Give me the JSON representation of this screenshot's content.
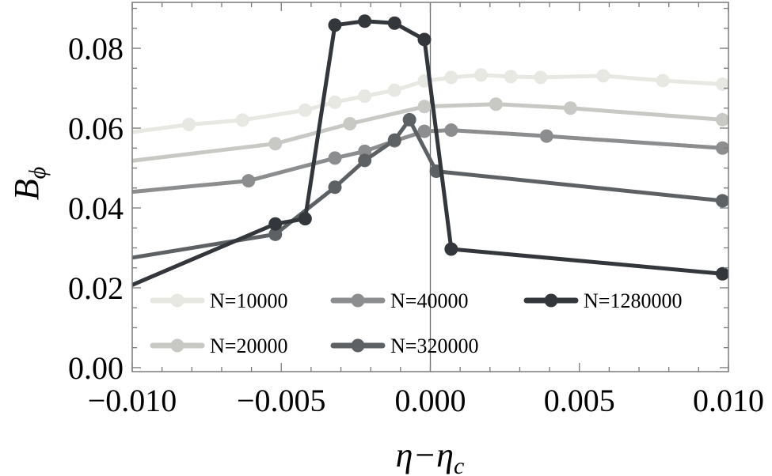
{
  "chart_data": {
    "type": "line",
    "xlabel": "η−η",
    "xlabel_sub": "c",
    "ylabel": "B",
    "ylabel_sub": "ϕ",
    "xlim": [
      -0.01,
      0.01
    ],
    "ylim": [
      -0.001,
      0.0915
    ],
    "x_ticks": [
      -0.01,
      -0.005,
      0.0,
      0.005,
      0.01
    ],
    "x_tick_labels": [
      "−0.010",
      "−0.005",
      "0.000",
      "0.005",
      "0.010"
    ],
    "y_ticks": [
      0.0,
      0.02,
      0.04,
      0.06,
      0.08
    ],
    "y_tick_labels": [
      "0.00",
      "0.02",
      "0.04",
      "0.06",
      "0.08"
    ],
    "vertical_line_x": 0.0,
    "legend_placement": "bottom",
    "series": [
      {
        "name": "N=10000",
        "color": "#e8e8e2",
        "points": [
          [
            -0.0105,
            0.0585
          ],
          [
            -0.0081,
            0.0609
          ],
          [
            -0.0063,
            0.062
          ],
          [
            -0.0042,
            0.0645
          ],
          [
            -0.0032,
            0.0665
          ],
          [
            -0.0022,
            0.068
          ],
          [
            -0.0012,
            0.0695
          ],
          [
            -0.0002,
            0.0718
          ],
          [
            0.0007,
            0.0727
          ],
          [
            0.0017,
            0.0733
          ],
          [
            0.0027,
            0.0729
          ],
          [
            0.0037,
            0.0727
          ],
          [
            0.0058,
            0.0731
          ],
          [
            0.0078,
            0.0719
          ],
          [
            0.0098,
            0.071
          ]
        ]
      },
      {
        "name": "N=20000",
        "color": "#c8c8c4",
        "points": [
          [
            -0.0106,
            0.0513
          ],
          [
            -0.0052,
            0.0561
          ],
          [
            -0.0027,
            0.0611
          ],
          [
            -0.0002,
            0.0654
          ],
          [
            0.0022,
            0.066
          ],
          [
            0.0047,
            0.065
          ],
          [
            0.0098,
            0.0621
          ]
        ]
      },
      {
        "name": "N=40000",
        "color": "#8c8d8e",
        "points": [
          [
            -0.0106,
            0.0436
          ],
          [
            -0.0061,
            0.0468
          ],
          [
            -0.0032,
            0.0525
          ],
          [
            -0.0022,
            0.0542
          ],
          [
            -0.0012,
            0.0568
          ],
          [
            -0.0002,
            0.0592
          ],
          [
            0.0007,
            0.0595
          ],
          [
            0.0039,
            0.058
          ],
          [
            0.0098,
            0.055
          ]
        ]
      },
      {
        "name": "N=320000",
        "color": "#5e6164",
        "points": [
          [
            -0.0106,
            0.0268
          ],
          [
            -0.0052,
            0.0334
          ],
          [
            -0.0032,
            0.0452
          ],
          [
            -0.0022,
            0.0519
          ],
          [
            -0.0012,
            0.057
          ],
          [
            -0.0007,
            0.0621
          ],
          [
            0.0002,
            0.0492
          ],
          [
            0.0098,
            0.0418
          ]
        ]
      },
      {
        "name": "N=1280000",
        "color": "#33373b",
        "points": [
          [
            -0.0106,
            0.0188
          ],
          [
            -0.0052,
            0.036
          ],
          [
            -0.0042,
            0.0373
          ],
          [
            -0.0032,
            0.0858
          ],
          [
            -0.0022,
            0.0868
          ],
          [
            -0.0012,
            0.0863
          ],
          [
            -0.0002,
            0.0822
          ],
          [
            0.0007,
            0.0297
          ],
          [
            0.0098,
            0.0235
          ]
        ]
      }
    ],
    "legend_items": [
      {
        "name": "N=10000",
        "color": "#e8e8e2",
        "col": 0,
        "row": 0
      },
      {
        "name": "N=40000",
        "color": "#8c8d8e",
        "col": 1,
        "row": 0
      },
      {
        "name": "N=1280000",
        "color": "#33373b",
        "col": 2,
        "row": 0
      },
      {
        "name": "N=20000",
        "color": "#c8c8c4",
        "col": 0,
        "row": 1
      },
      {
        "name": "N=320000",
        "color": "#5e6164",
        "col": 1,
        "row": 1
      }
    ]
  }
}
